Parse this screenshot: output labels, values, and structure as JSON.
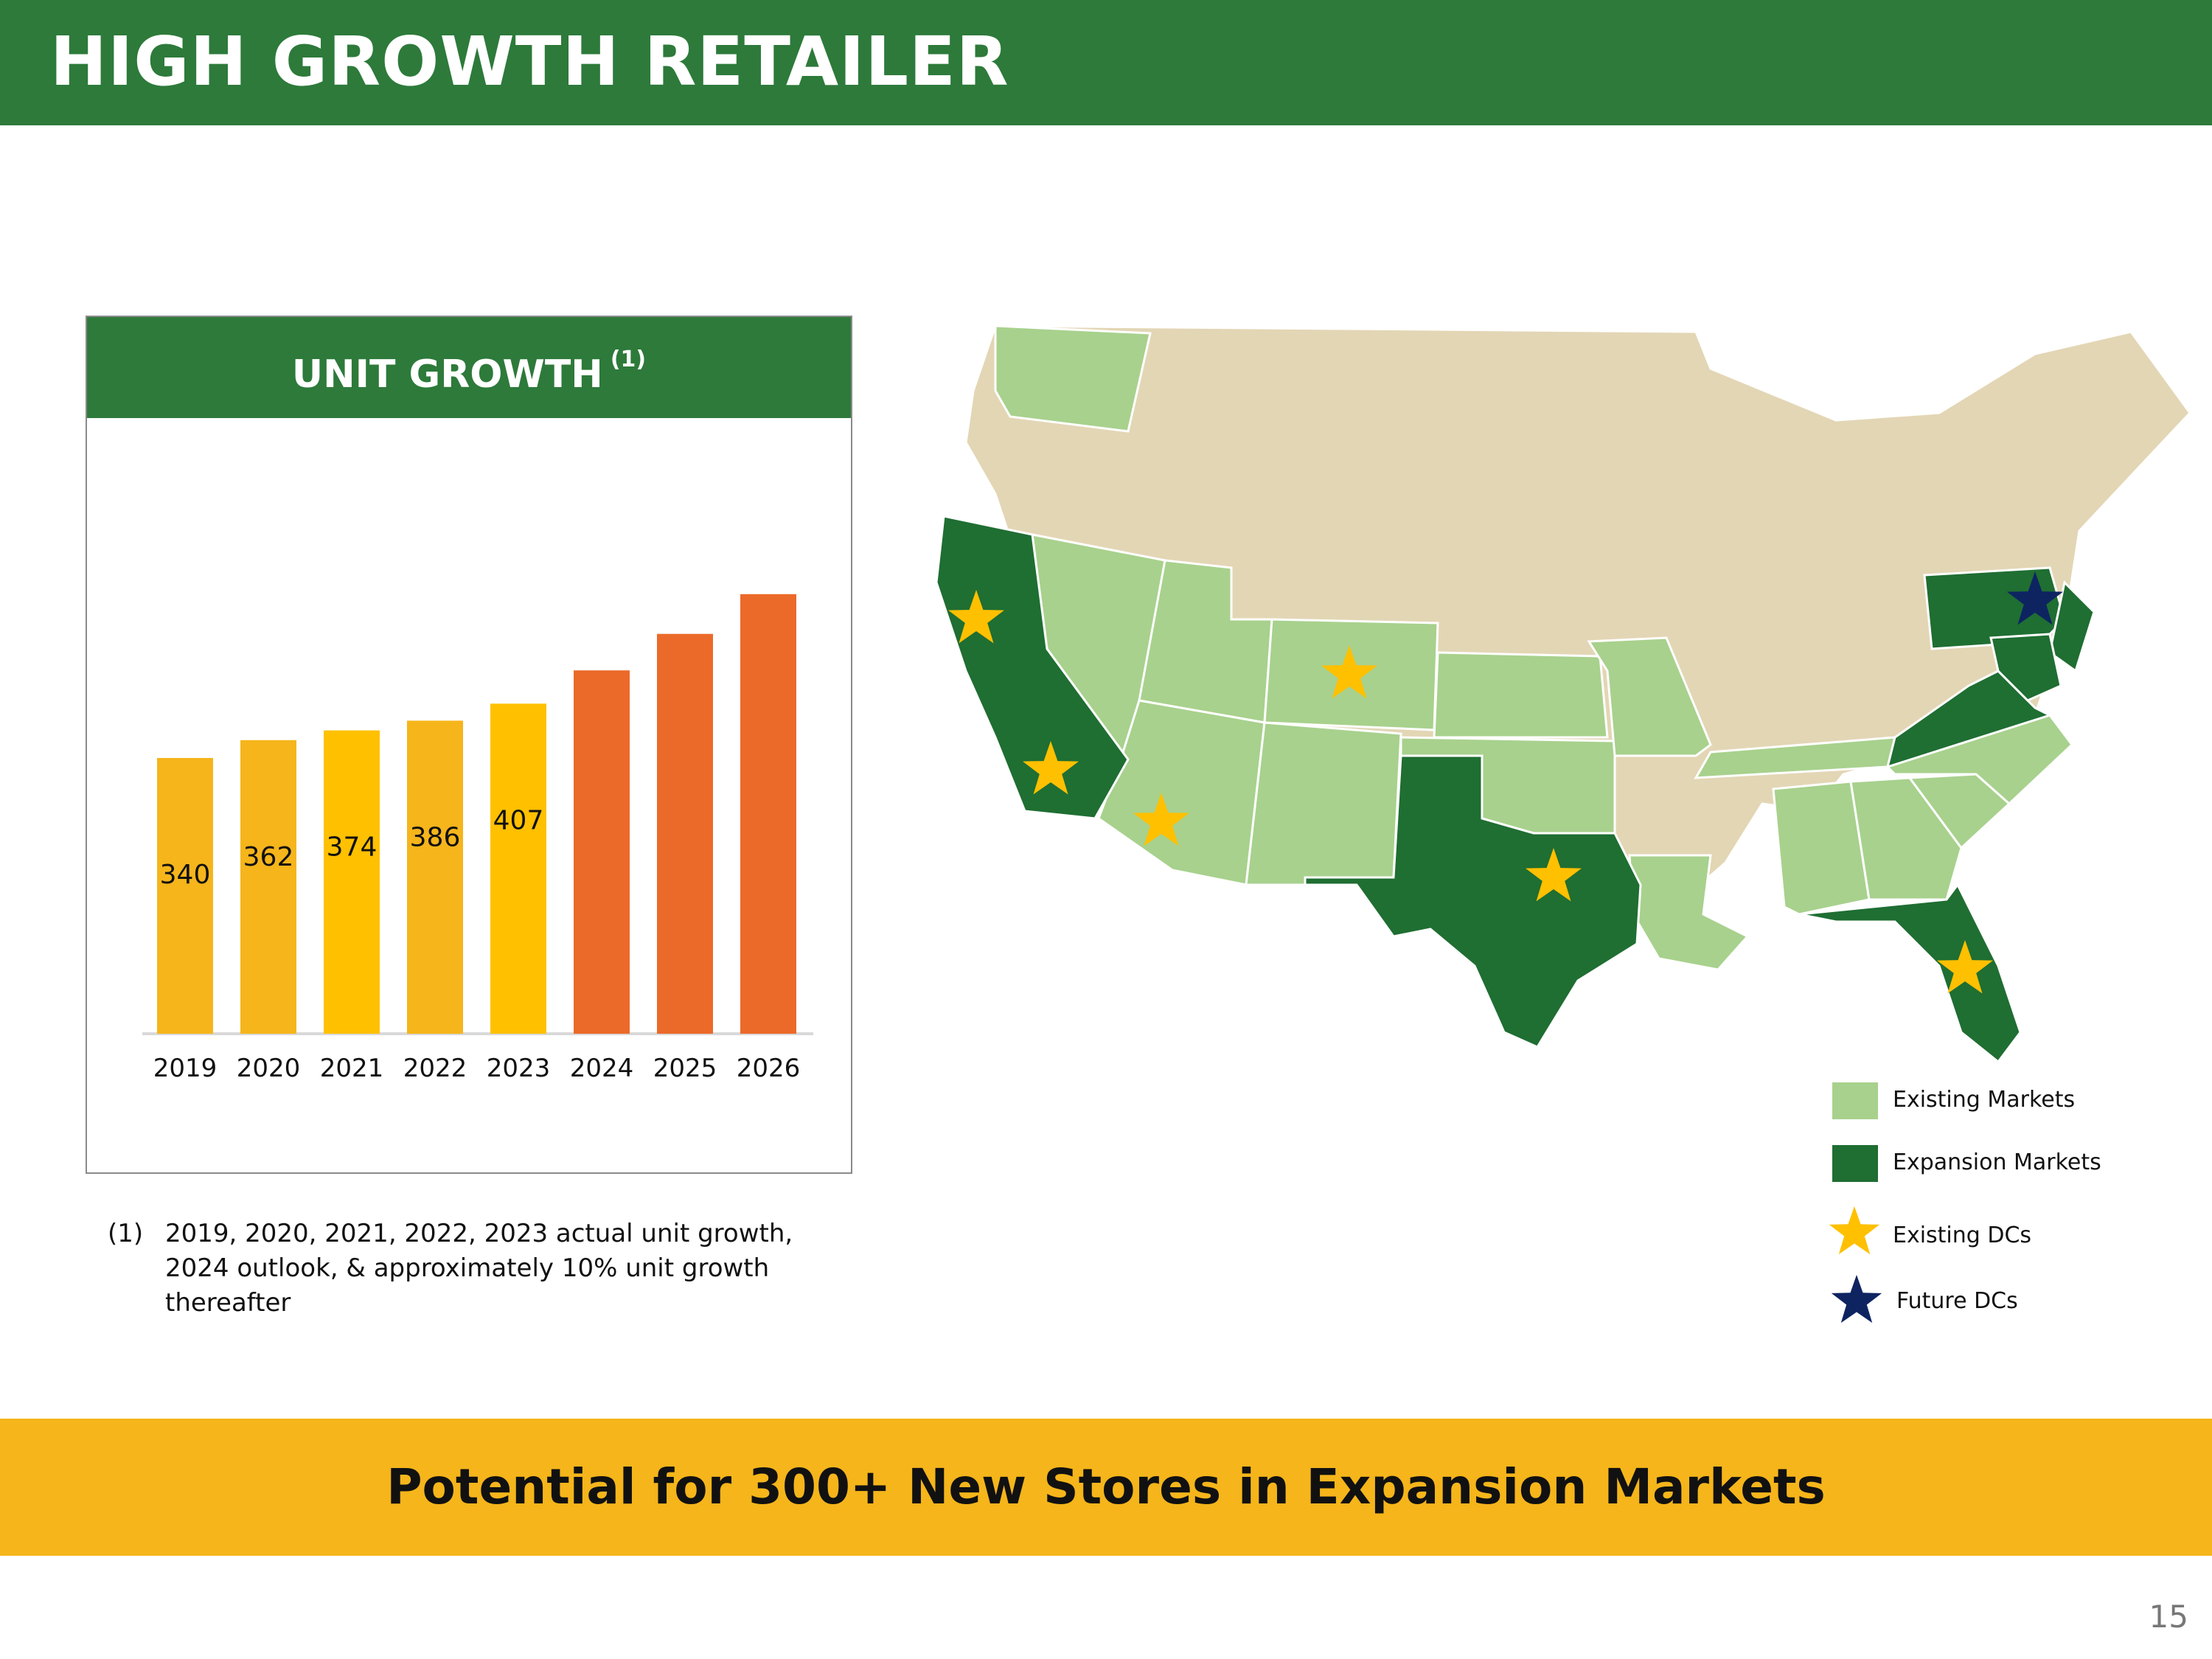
{
  "header": {
    "title": "HIGH GROWTH RETAILER"
  },
  "card": {
    "title": "UNIT GROWTH",
    "title_sup": "(1)"
  },
  "chart_data": {
    "type": "bar",
    "title": "UNIT GROWTH (1)",
    "categories": [
      "2019",
      "2020",
      "2021",
      "2022",
      "2023",
      "2024",
      "2025",
      "2026"
    ],
    "values": [
      340,
      362,
      374,
      386,
      407,
      448,
      493,
      542
    ],
    "data_labels": [
      "340",
      "362",
      "374",
      "386",
      "407",
      "",
      "",
      ""
    ],
    "colors": [
      "#f5b51b",
      "#f5b51b",
      "#ffc000",
      "#f5b51b",
      "#ffc000",
      "#eb6a29",
      "#eb6a29",
      "#eb6a29"
    ],
    "ylim": [
      0,
      600
    ],
    "grid": false,
    "legend": "none"
  },
  "footnote": {
    "num": "(1)",
    "text": "2019, 2020, 2021, 2022, 2023 actual unit growth, 2024 outlook, & approximately 10% unit growth thereafter"
  },
  "map": {
    "colors": {
      "other": "#e3d6b5",
      "existing": "#a8d18d",
      "expansion": "#1f6e32",
      "existing_dc": "#ffc000",
      "future_dc": "#0d2461",
      "border": "#ffffff"
    },
    "legend": [
      {
        "label": "Existing Markets",
        "icon": "light-green-square"
      },
      {
        "label": "Expansion Markets",
        "icon": "dark-green-square"
      },
      {
        "label": "Existing DCs",
        "icon": "gold-star-icon"
      },
      {
        "label": "Future DCs",
        "icon": "navy-star-icon"
      }
    ]
  },
  "banner": {
    "text": "Potential for 300+ New Stores in Expansion Markets"
  },
  "page_number": "15"
}
